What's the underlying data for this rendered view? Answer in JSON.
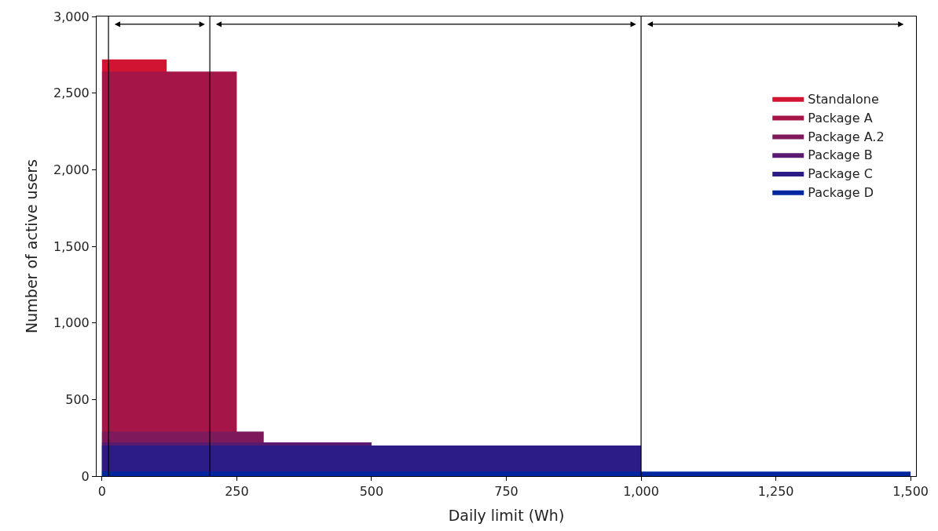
{
  "chart_data": {
    "type": "area",
    "xlabel": "Daily limit (Wh)",
    "ylabel": "Number of active users",
    "xlim": [
      -10,
      1510
    ],
    "xticks": [
      {
        "value": 0,
        "label": "0"
      },
      {
        "value": 250,
        "label": "250"
      },
      {
        "value": 500,
        "label": "500"
      },
      {
        "value": 750,
        "label": "750"
      },
      {
        "value": 1000,
        "label": "1,000"
      },
      {
        "value": 1250,
        "label": "1,250"
      },
      {
        "value": 1500,
        "label": "1,500"
      }
    ],
    "ylim": [
      0,
      3000
    ],
    "yticks": [
      {
        "value": 0,
        "label": "0"
      },
      {
        "value": 500,
        "label": "500"
      },
      {
        "value": 1000,
        "label": "1,000"
      },
      {
        "value": 1500,
        "label": "1,500"
      },
      {
        "value": 2000,
        "label": "2,000"
      },
      {
        "value": 2500,
        "label": "2,500"
      },
      {
        "value": 3000,
        "label": "3,000"
      }
    ],
    "series": [
      {
        "name": "Standalone",
        "color": "#d01432",
        "x": [
          0,
          120
        ],
        "values": [
          2720,
          2720
        ]
      },
      {
        "name": "Package A",
        "color": "#a51548",
        "x": [
          0,
          250
        ],
        "values": [
          2640,
          2640
        ]
      },
      {
        "name": "Package A.2",
        "color": "#7e1a5c",
        "x": [
          0,
          300
        ],
        "values": [
          290,
          290
        ]
      },
      {
        "name": "Package B",
        "color": "#5a1a70",
        "x": [
          0,
          500
        ],
        "values": [
          220,
          220
        ]
      },
      {
        "name": "Package C",
        "color": "#2b1c88",
        "x": [
          0,
          1000
        ],
        "values": [
          200,
          200
        ]
      },
      {
        "name": "Package D",
        "color": "#0026a0",
        "x": [
          0,
          1500
        ],
        "values": [
          30,
          30
        ]
      }
    ],
    "ref_lines": [
      {
        "axis": "x",
        "value": 12,
        "color": "#000000"
      },
      {
        "axis": "x",
        "value": 200,
        "color": "#000000"
      },
      {
        "axis": "x",
        "value": 1000,
        "color": "#000000"
      }
    ],
    "legend": "top right"
  }
}
